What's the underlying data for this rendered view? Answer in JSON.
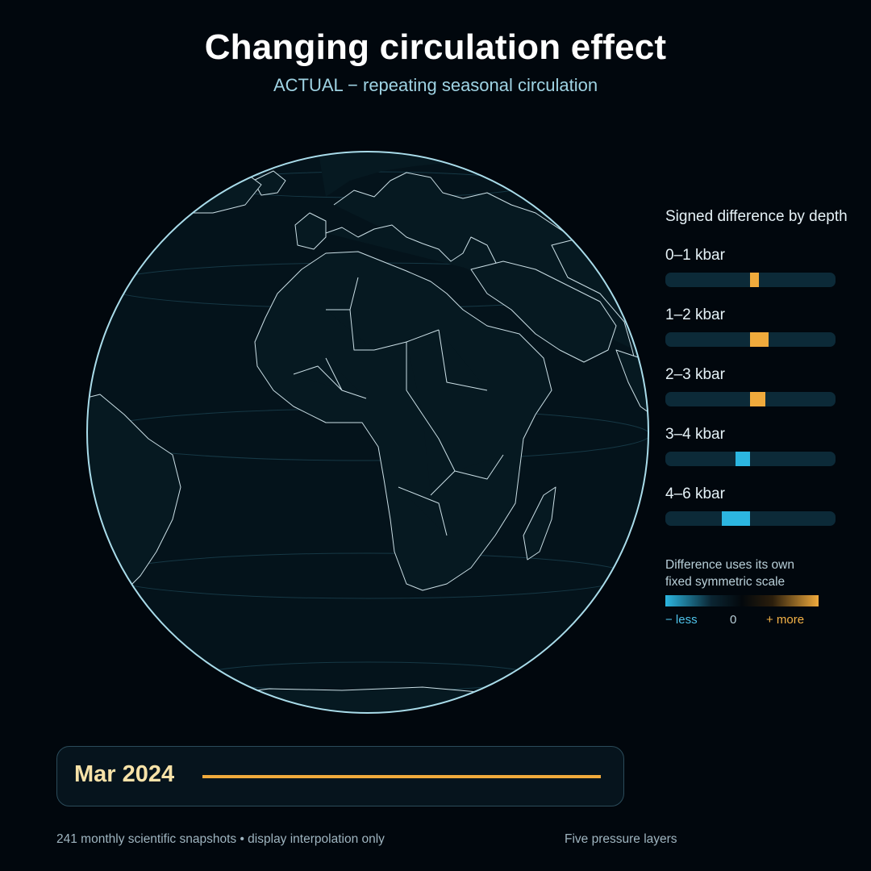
{
  "header": {
    "title": "Changing circulation effect",
    "subtitle": "ACTUAL − repeating seasonal circulation"
  },
  "legend": {
    "title": "Signed difference by depth",
    "layers": [
      {
        "label": "0–1 kbar",
        "value": 0.1
      },
      {
        "label": "1–2 kbar",
        "value": 0.22
      },
      {
        "label": "2–3 kbar",
        "value": 0.18
      },
      {
        "label": "3–4 kbar",
        "value": -0.17
      },
      {
        "label": "4–6 kbar",
        "value": -0.33
      }
    ],
    "scale_note_line1": "Difference uses its own",
    "scale_note_line2": "fixed symmetric scale",
    "scale_less": "− less",
    "scale_zero": "0",
    "scale_more": "+ more",
    "positive_color": "#f0aa3c",
    "negative_color": "#2cb6e0"
  },
  "timeline": {
    "date": "Mar 2024",
    "progress": 1.0
  },
  "footer": {
    "left": "241 monthly scientific snapshots • display interpolation only",
    "right": "Five pressure layers"
  },
  "globe": {
    "ocean_color": "#04131b",
    "outline_color": "#a9dcea",
    "border_color": "#c9dde5"
  }
}
